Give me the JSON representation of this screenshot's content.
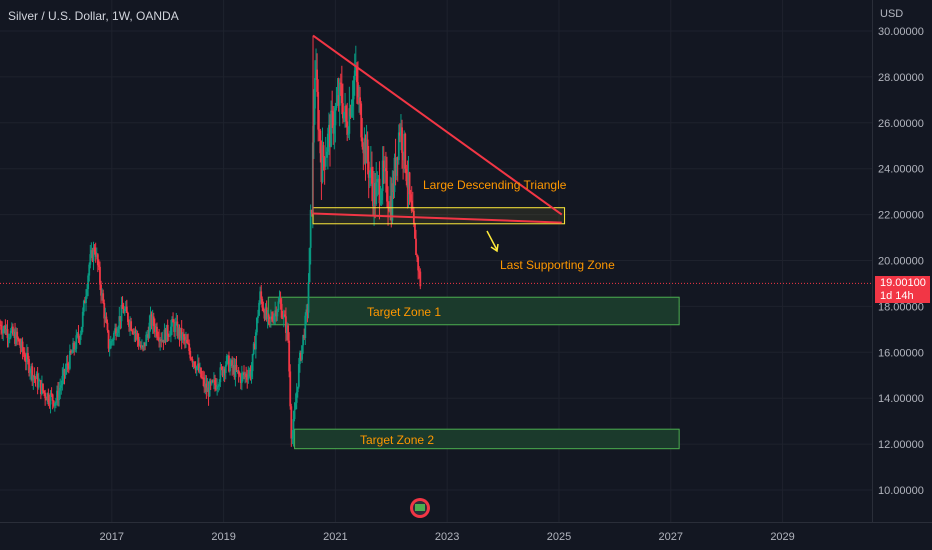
{
  "header": {
    "symbol_title": "Silver / U.S. Dollar, 1W, OANDA",
    "currency": "USD"
  },
  "price_badge": {
    "price": "19.00100",
    "countdown": "1d 14h"
  },
  "annotations": {
    "triangle": "Large Descending Triangle",
    "support": "Last Supporting Zone",
    "target1": "Target Zone 1",
    "target2": "Target Zone 2"
  },
  "colors": {
    "background": "#131722",
    "grid": "#1e222d",
    "up_candle": "#089981",
    "down_candle": "#f23645",
    "annotation_text": "#ff9800",
    "triangle_line": "#f23645",
    "support_zone_border": "#ffeb3b",
    "target_zone_fill": "#1b3a2c",
    "target_zone_border": "#4caf50",
    "current_price_line": "#f23645"
  },
  "chart_data": {
    "type": "candlestick",
    "title": "Silver / U.S. Dollar, 1W, OANDA",
    "x_ticks": [
      "2017",
      "2019",
      "2021",
      "2023",
      "2025",
      "2027",
      "2029"
    ],
    "y_ticks": [
      "10.00000",
      "12.00000",
      "14.00000",
      "16.00000",
      "18.00000",
      "20.00000",
      "22.00000",
      "24.00000",
      "26.00000",
      "28.00000",
      "30.00000"
    ],
    "ylim": [
      9.0,
      30.3
    ],
    "xlim": [
      2015.0,
      2030.6
    ],
    "current_price": 19.001,
    "price_path": [
      [
        2015.0,
        17.2
      ],
      [
        2015.3,
        16.6
      ],
      [
        2015.6,
        15.0
      ],
      [
        2015.8,
        14.2
      ],
      [
        2016.0,
        13.9
      ],
      [
        2016.2,
        15.4
      ],
      [
        2016.45,
        17.0
      ],
      [
        2016.6,
        19.9
      ],
      [
        2016.7,
        20.6
      ],
      [
        2016.85,
        18.0
      ],
      [
        2016.95,
        16.2
      ],
      [
        2017.2,
        17.9
      ],
      [
        2017.4,
        17.0
      ],
      [
        2017.55,
        16.0
      ],
      [
        2017.7,
        17.4
      ],
      [
        2017.9,
        16.6
      ],
      [
        2018.1,
        17.2
      ],
      [
        2018.3,
        16.5
      ],
      [
        2018.5,
        15.5
      ],
      [
        2018.7,
        14.3
      ],
      [
        2018.85,
        14.6
      ],
      [
        2019.05,
        15.6
      ],
      [
        2019.3,
        14.9
      ],
      [
        2019.5,
        15.2
      ],
      [
        2019.65,
        18.5
      ],
      [
        2019.8,
        17.2
      ],
      [
        2020.0,
        18.2
      ],
      [
        2020.15,
        16.8
      ],
      [
        2020.22,
        12.0
      ],
      [
        2020.35,
        15.4
      ],
      [
        2020.5,
        17.9
      ],
      [
        2020.58,
        22.9
      ],
      [
        2020.63,
        28.5
      ],
      [
        2020.75,
        24.2
      ],
      [
        2020.95,
        26.0
      ],
      [
        2021.1,
        27.3
      ],
      [
        2021.2,
        25.8
      ],
      [
        2021.35,
        28.2
      ],
      [
        2021.5,
        25.3
      ],
      [
        2021.7,
        22.8
      ],
      [
        2021.85,
        23.6
      ],
      [
        2022.0,
        22.5
      ],
      [
        2022.15,
        25.9
      ],
      [
        2022.25,
        24.5
      ],
      [
        2022.35,
        22.0
      ],
      [
        2022.45,
        20.3
      ],
      [
        2022.52,
        19.0
      ]
    ],
    "descending_triangle": {
      "upper_line": [
        [
          2020.6,
          29.8
        ],
        [
          2025.05,
          22.0
        ]
      ],
      "base_line": [
        [
          2020.6,
          22.05
        ],
        [
          2025.05,
          21.65
        ]
      ]
    },
    "last_supporting_zone": {
      "x": [
        2020.6,
        2025.1
      ],
      "y": [
        21.6,
        22.3
      ]
    },
    "target_zone_1": {
      "x": [
        2019.8,
        2027.15
      ],
      "y": [
        17.2,
        18.4
      ]
    },
    "target_zone_2": {
      "x": [
        2020.27,
        2027.15
      ],
      "y": [
        11.8,
        12.65
      ]
    }
  }
}
